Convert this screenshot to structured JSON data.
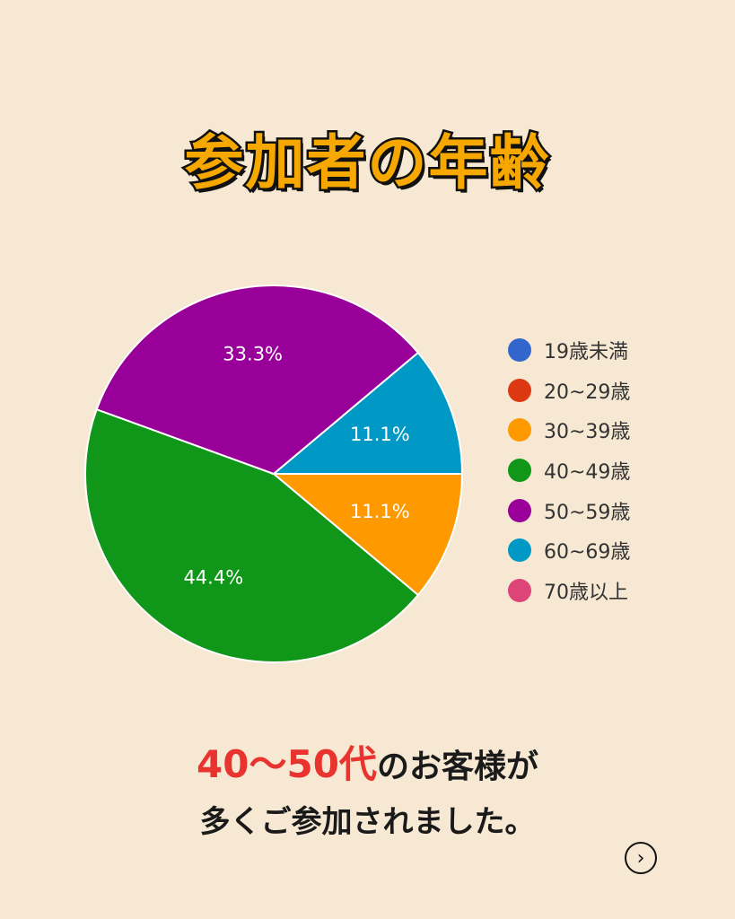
{
  "title": "参加者の年齢",
  "chart_data": {
    "type": "pie",
    "slices": [
      {
        "label": "19歳未満",
        "value": 0,
        "color": "#3366cc"
      },
      {
        "label": "20~29歳",
        "value": 0,
        "color": "#dc3912"
      },
      {
        "label": "30~39歳",
        "value": 11.1,
        "color": "#ff9900"
      },
      {
        "label": "40~49歳",
        "value": 44.4,
        "color": "#109618"
      },
      {
        "label": "50~59歳",
        "value": 33.3,
        "color": "#990099"
      },
      {
        "label": "60~69歳",
        "value": 11.1,
        "color": "#0099c6"
      },
      {
        "label": "70歳以上",
        "value": 0,
        "color": "#dd4477"
      }
    ],
    "data_labels": [
      "11.1%",
      "44.4%",
      "33.3%",
      "11.1%"
    ],
    "legend_position": "right"
  },
  "caption": {
    "highlight": "40〜50代",
    "line1_rest": "のお客様が",
    "line2": "多くご参加されました。"
  },
  "next_icon": "chevron-right-icon"
}
